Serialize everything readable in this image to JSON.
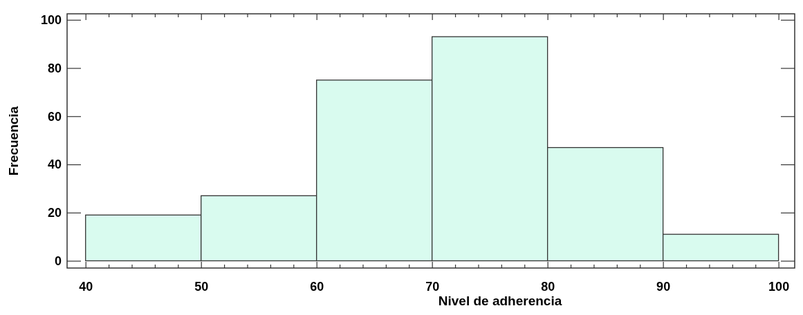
{
  "chart_data": {
    "type": "histogram",
    "xlabel": "Nivel de adherencia",
    "ylabel": "Frecuencia",
    "bins": [
      40,
      50,
      60,
      70,
      80,
      90,
      100
    ],
    "values": [
      19,
      27,
      75,
      93,
      47,
      11
    ],
    "color": "#d9fbef",
    "xlim": [
      38.4,
      101.4
    ],
    "ylim": [
      -3,
      102.5
    ],
    "xticks": [
      40,
      {
        "value": 42,
        "label": null
      },
      {
        "value": 44,
        "label": null
      },
      {
        "value": 46,
        "label": null
      },
      {
        "value": 48,
        "label": null
      },
      50,
      {
        "value": 52,
        "label": null
      },
      {
        "value": 54,
        "label": null
      },
      {
        "value": 56,
        "label": null
      },
      {
        "value": 58,
        "label": null
      },
      60,
      {
        "value": 62,
        "label": null
      },
      {
        "value": 64,
        "label": null
      },
      {
        "value": 66,
        "label": null
      },
      {
        "value": 68,
        "label": null
      },
      70,
      {
        "value": 72,
        "label": null
      },
      {
        "value": 74,
        "label": null
      },
      {
        "value": 76,
        "label": null
      },
      {
        "value": 78,
        "label": null
      },
      80,
      {
        "value": 82,
        "label": null
      },
      {
        "value": 84,
        "label": null
      },
      {
        "value": 86,
        "label": null
      },
      {
        "value": 88,
        "label": null
      },
      90,
      {
        "value": 92,
        "label": null
      },
      {
        "value": 94,
        "label": null
      },
      {
        "value": 96,
        "label": null
      },
      {
        "value": 98,
        "label": null
      },
      100
    ],
    "yticks": [
      0,
      20,
      40,
      60,
      80,
      100
    ],
    "grid": false
  }
}
